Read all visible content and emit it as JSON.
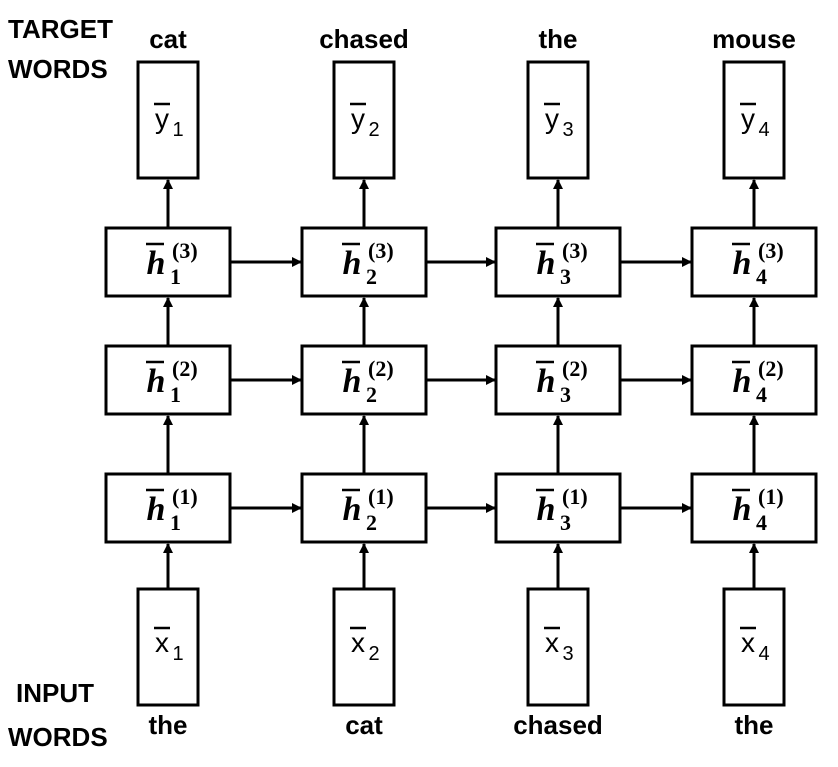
{
  "side_labels": {
    "target": [
      "TARGET",
      "WORDS"
    ],
    "input": [
      "INPUT",
      "WORDS"
    ]
  },
  "target_words": [
    "cat",
    "chased",
    "the",
    "mouse"
  ],
  "input_words": [
    "the",
    "cat",
    "chased",
    "the"
  ],
  "output_vectors": [
    {
      "base": "y",
      "sub": "1"
    },
    {
      "base": "y",
      "sub": "2"
    },
    {
      "base": "y",
      "sub": "3"
    },
    {
      "base": "y",
      "sub": "4"
    }
  ],
  "input_vectors": [
    {
      "base": "x",
      "sub": "1"
    },
    {
      "base": "x",
      "sub": "2"
    },
    {
      "base": "x",
      "sub": "3"
    },
    {
      "base": "x",
      "sub": "4"
    }
  ],
  "hidden_states": [
    [
      {
        "base": "h",
        "sub": "1",
        "sup": "(3)"
      },
      {
        "base": "h",
        "sub": "2",
        "sup": "(3)"
      },
      {
        "base": "h",
        "sub": "3",
        "sup": "(3)"
      },
      {
        "base": "h",
        "sub": "4",
        "sup": "(3)"
      }
    ],
    [
      {
        "base": "h",
        "sub": "1",
        "sup": "(2)"
      },
      {
        "base": "h",
        "sub": "2",
        "sup": "(2)"
      },
      {
        "base": "h",
        "sub": "3",
        "sup": "(2)"
      },
      {
        "base": "h",
        "sub": "4",
        "sup": "(2)"
      }
    ],
    [
      {
        "base": "h",
        "sub": "1",
        "sup": "(1)"
      },
      {
        "base": "h",
        "sub": "2",
        "sup": "(1)"
      },
      {
        "base": "h",
        "sub": "3",
        "sup": "(1)"
      },
      {
        "base": "h",
        "sub": "4",
        "sup": "(1)"
      }
    ]
  ]
}
